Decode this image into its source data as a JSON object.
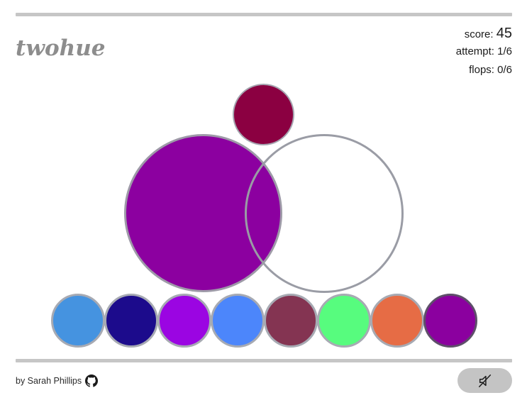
{
  "app": {
    "logo": "twohue"
  },
  "stats": {
    "score_label": "score:",
    "score_value": "45",
    "attempt_label": "attempt:",
    "attempt_value": "1/6",
    "flops_label": "flops:",
    "flops_value": "0/6"
  },
  "board": {
    "target_color": "#8b0041",
    "mix_left_color": "#8c00a0",
    "mix_right_color": "transparent"
  },
  "palette": [
    {
      "name": "sky-blue",
      "color": "#4593e0"
    },
    {
      "name": "navy",
      "color": "#1c0b8c"
    },
    {
      "name": "violet",
      "color": "#9b05e2"
    },
    {
      "name": "cornflower",
      "color": "#4c86fb"
    },
    {
      "name": "plum",
      "color": "#843452"
    },
    {
      "name": "mint",
      "color": "#57fc7e"
    },
    {
      "name": "coral",
      "color": "#e66c45"
    },
    {
      "name": "purple",
      "color": "#8b009f"
    }
  ],
  "footer": {
    "credit": "by Sarah Phillips",
    "github_icon": "github-icon",
    "sound_icon": "mute-icon"
  }
}
